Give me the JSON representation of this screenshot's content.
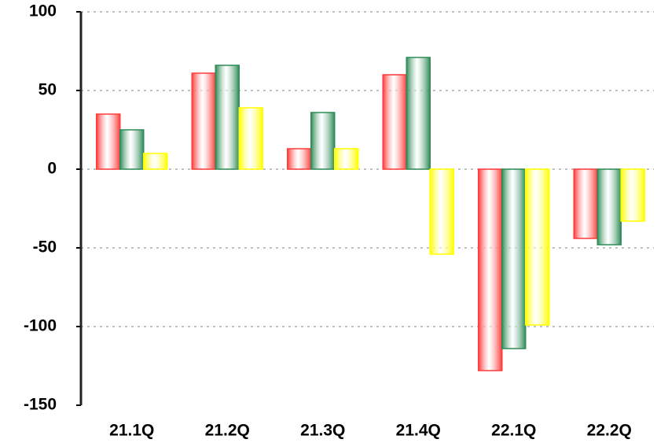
{
  "chart_data": {
    "type": "bar",
    "categories": [
      "21.1Q",
      "21.2Q",
      "21.3Q",
      "21.4Q",
      "22.1Q",
      "22.2Q"
    ],
    "series": [
      {
        "color": "#ff3b3b",
        "values": [
          35,
          61,
          13,
          60,
          -128,
          -44
        ]
      },
      {
        "color": "#2e8b57",
        "values": [
          25,
          66,
          36,
          71,
          -114,
          -48
        ]
      },
      {
        "color": "#ffff00",
        "values": [
          10,
          39,
          13,
          -54,
          -99,
          -33
        ]
      }
    ],
    "ylim": [
      -150,
      100
    ],
    "yticks": [
      -150,
      -100,
      -50,
      0,
      50,
      100
    ],
    "grid": true
  }
}
